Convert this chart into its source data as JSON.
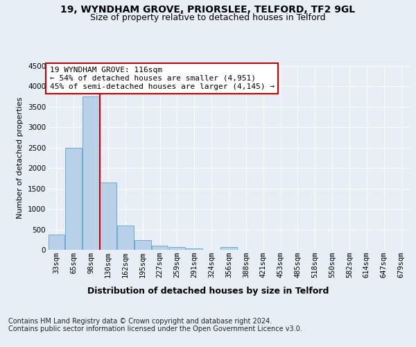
{
  "title1": "19, WYNDHAM GROVE, PRIORSLEE, TELFORD, TF2 9GL",
  "title2": "Size of property relative to detached houses in Telford",
  "xlabel": "Distribution of detached houses by size in Telford",
  "ylabel": "Number of detached properties",
  "categories": [
    "33sqm",
    "65sqm",
    "98sqm",
    "130sqm",
    "162sqm",
    "195sqm",
    "227sqm",
    "259sqm",
    "291sqm",
    "324sqm",
    "356sqm",
    "388sqm",
    "421sqm",
    "453sqm",
    "485sqm",
    "518sqm",
    "550sqm",
    "582sqm",
    "614sqm",
    "647sqm",
    "679sqm"
  ],
  "values": [
    370,
    2500,
    3750,
    1650,
    590,
    230,
    110,
    60,
    40,
    0,
    60,
    0,
    0,
    0,
    0,
    0,
    0,
    0,
    0,
    0,
    0
  ],
  "bar_color": "#b8d0e8",
  "bar_edge_color": "#6aaad4",
  "vline_color": "#cc0000",
  "annotation_text": "19 WYNDHAM GROVE: 116sqm\n← 54% of detached houses are smaller (4,951)\n45% of semi-detached houses are larger (4,145) →",
  "annotation_box_color": "#ffffff",
  "annotation_box_edge": "#cc0000",
  "ylim": [
    0,
    4500
  ],
  "yticks": [
    0,
    500,
    1000,
    1500,
    2000,
    2500,
    3000,
    3500,
    4000,
    4500
  ],
  "footer": "Contains HM Land Registry data © Crown copyright and database right 2024.\nContains public sector information licensed under the Open Government Licence v3.0.",
  "background_color": "#e8eef5",
  "plot_bg_color": "#e8eef5",
  "grid_color": "#ffffff",
  "title1_fontsize": 10,
  "title2_fontsize": 9,
  "annotation_fontsize": 8,
  "footer_fontsize": 7,
  "ylabel_fontsize": 8,
  "xlabel_fontsize": 9,
  "tick_fontsize": 7.5
}
